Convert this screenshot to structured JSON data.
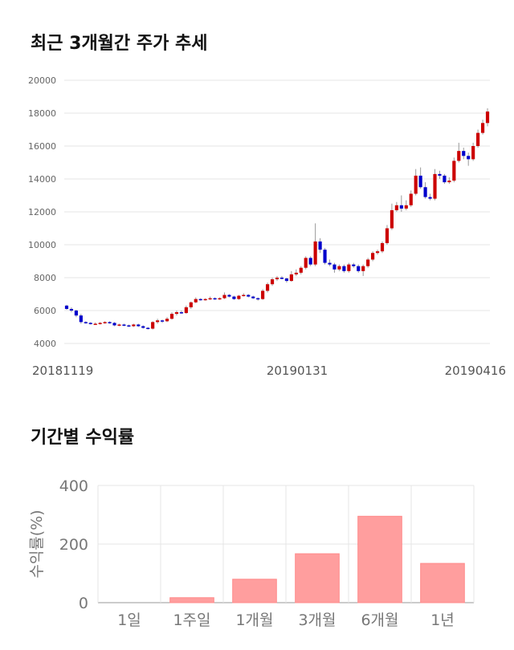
{
  "titles": {
    "price": "최근 3개월간 주가 추세",
    "returns": "기간별 수익률"
  },
  "chart_data": [
    {
      "type": "candlestick",
      "y_ticks": [
        "20000",
        "18000",
        "16000",
        "14000",
        "12000",
        "10000",
        "8000",
        "6000",
        "4000"
      ],
      "ylim": [
        4000,
        20000
      ],
      "x_labels": [
        "20181119",
        "20190131",
        "20190416"
      ],
      "grid": "horizontal",
      "up_color": "#cc0000",
      "down_color": "#0000cc",
      "candles": [
        [
          6300,
          6100,
          6350,
          6050
        ],
        [
          6100,
          6000,
          6200,
          5900
        ],
        [
          6000,
          5700,
          6050,
          5600
        ],
        [
          5700,
          5300,
          5800,
          5200
        ],
        [
          5300,
          5250,
          5350,
          5200
        ],
        [
          5250,
          5200,
          5300,
          5150
        ],
        [
          5200,
          5200,
          5280,
          5150
        ],
        [
          5200,
          5250,
          5300,
          5150
        ],
        [
          5250,
          5300,
          5350,
          5200
        ],
        [
          5300,
          5250,
          5350,
          5200
        ],
        [
          5250,
          5100,
          5300,
          5050
        ],
        [
          5100,
          5150,
          5200,
          5050
        ],
        [
          5150,
          5100,
          5200,
          5050
        ],
        [
          5100,
          5050,
          5150,
          5000
        ],
        [
          5050,
          5150,
          5200,
          5000
        ],
        [
          5150,
          5050,
          5200,
          5000
        ],
        [
          5050,
          4950,
          5100,
          4900
        ],
        [
          4950,
          4900,
          5000,
          4850
        ],
        [
          4900,
          5300,
          5350,
          4850
        ],
        [
          5300,
          5400,
          5500,
          5200
        ],
        [
          5400,
          5350,
          5450,
          5250
        ],
        [
          5350,
          5500,
          5600,
          5300
        ],
        [
          5500,
          5800,
          5900,
          5450
        ],
        [
          5800,
          5900,
          6000,
          5700
        ],
        [
          5900,
          5850,
          6000,
          5800
        ],
        [
          5850,
          6200,
          6300,
          5800
        ],
        [
          6200,
          6500,
          6550,
          6100
        ],
        [
          6500,
          6700,
          6800,
          6450
        ],
        [
          6700,
          6650,
          6750,
          6600
        ],
        [
          6650,
          6700,
          6750,
          6600
        ],
        [
          6700,
          6750,
          6850,
          6650
        ],
        [
          6750,
          6700,
          6800,
          6650
        ],
        [
          6700,
          6750,
          6800,
          6650
        ],
        [
          6750,
          6950,
          7100,
          6700
        ],
        [
          6950,
          6850,
          7000,
          6800
        ],
        [
          6850,
          6700,
          6900,
          6650
        ],
        [
          6700,
          6900,
          6950,
          6650
        ],
        [
          6900,
          6950,
          7050,
          6850
        ],
        [
          6950,
          6850,
          7000,
          6800
        ],
        [
          6850,
          6750,
          6900,
          6700
        ],
        [
          6750,
          6700,
          6800,
          6600
        ],
        [
          6700,
          7200,
          7300,
          6650
        ],
        [
          7200,
          7600,
          7700,
          7100
        ],
        [
          7600,
          7900,
          8000,
          7500
        ],
        [
          7900,
          8000,
          8100,
          7800
        ],
        [
          8000,
          7950,
          8100,
          7900
        ],
        [
          7950,
          7800,
          8000,
          7700
        ],
        [
          7800,
          8200,
          8400,
          7750
        ],
        [
          8200,
          8300,
          8500,
          8100
        ],
        [
          8300,
          8600,
          8700,
          8200
        ],
        [
          8600,
          9200,
          9300,
          8500
        ],
        [
          9200,
          8800,
          9300,
          8700
        ],
        [
          8800,
          10200,
          11300,
          8700
        ],
        [
          10200,
          9700,
          10400,
          9500
        ],
        [
          9700,
          8900,
          9800,
          8800
        ],
        [
          8900,
          8800,
          9100,
          8700
        ],
        [
          8800,
          8500,
          8900,
          8300
        ],
        [
          8500,
          8700,
          8800,
          8400
        ],
        [
          8700,
          8400,
          8800,
          8300
        ],
        [
          8400,
          8800,
          8900,
          8300
        ],
        [
          8800,
          8700,
          8900,
          8600
        ],
        [
          8700,
          8400,
          8800,
          8300
        ],
        [
          8400,
          8700,
          8800,
          8100
        ],
        [
          8700,
          9100,
          9200,
          8600
        ],
        [
          9100,
          9500,
          9600,
          9000
        ],
        [
          9500,
          9600,
          9700,
          9400
        ],
        [
          9600,
          10100,
          10200,
          9500
        ],
        [
          10100,
          11000,
          11200,
          10000
        ],
        [
          11000,
          12100,
          12500,
          10900
        ],
        [
          12100,
          12400,
          12600,
          12000
        ],
        [
          12400,
          12200,
          13000,
          12000
        ],
        [
          12200,
          12400,
          12700,
          12100
        ],
        [
          12400,
          13100,
          13300,
          12300
        ],
        [
          13100,
          14200,
          14600,
          13000
        ],
        [
          14200,
          13500,
          14700,
          13400
        ],
        [
          13500,
          12900,
          13800,
          12800
        ],
        [
          12900,
          12800,
          13100,
          12700
        ],
        [
          12800,
          14300,
          14600,
          12700
        ],
        [
          14300,
          14200,
          14500,
          14000
        ],
        [
          14200,
          13800,
          14300,
          13700
        ],
        [
          13800,
          13900,
          14100,
          13700
        ],
        [
          13900,
          15100,
          15300,
          13800
        ],
        [
          15100,
          15700,
          16200,
          15000
        ],
        [
          15700,
          15400,
          15900,
          15200
        ],
        [
          15400,
          15200,
          15600,
          14800
        ],
        [
          15200,
          16000,
          16200,
          15100
        ],
        [
          16000,
          16800,
          17000,
          15900
        ],
        [
          16800,
          17400,
          17600,
          16700
        ],
        [
          17400,
          18100,
          18300,
          17200
        ]
      ]
    },
    {
      "type": "bar",
      "categories": [
        "1일",
        "1주일",
        "1개월",
        "3개월",
        "6개월",
        "1년"
      ],
      "values": [
        0,
        17,
        80,
        167,
        295,
        134
      ],
      "ylabel": "수익률(%)",
      "y_ticks": [
        "400",
        "200",
        "0"
      ],
      "ylim": [
        0,
        400
      ],
      "bar_color": "#ff9e9e",
      "grid": true
    }
  ]
}
